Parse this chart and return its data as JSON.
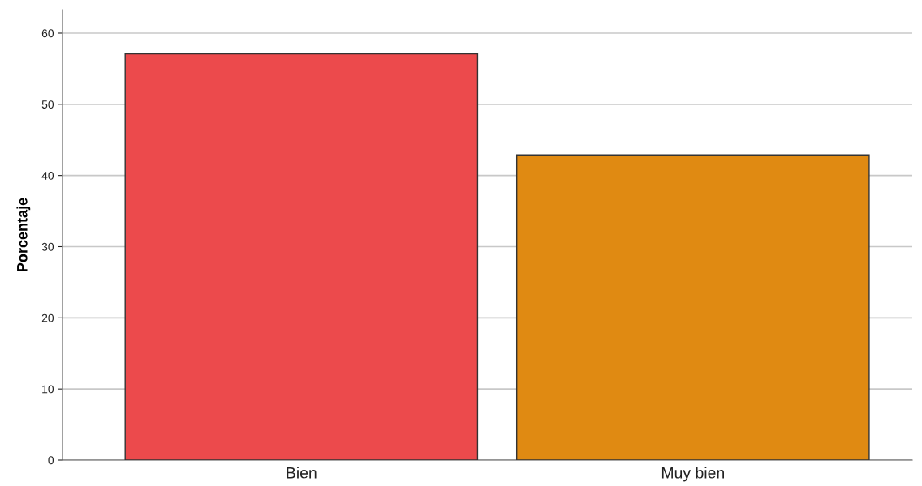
{
  "chart_data": {
    "type": "bar",
    "ylabel": "Porcentaje",
    "categories": [
      "Bien",
      "Muy bien"
    ],
    "values": [
      57.1,
      42.9
    ],
    "colors": [
      "#ec4a4c",
      "#e08a12"
    ],
    "ylim": [
      0,
      63.3
    ],
    "yticks": [
      0,
      10,
      20,
      30,
      40,
      50,
      60
    ],
    "grid": "y",
    "legend": false
  }
}
